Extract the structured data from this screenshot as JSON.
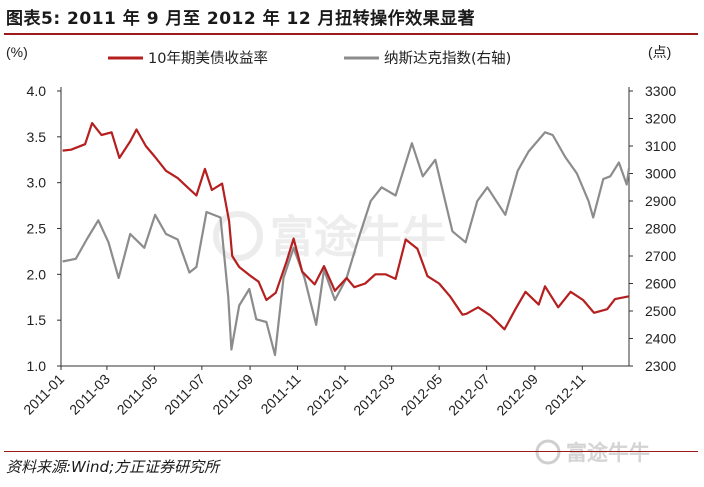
{
  "figure": {
    "title": "图表5:   2011 年 9 月至 2012 年 12 月扭转操作效果显著",
    "source": "资料来源:Wind;方正证券研究所",
    "watermark": "富途牛牛",
    "watermark_icon": "futu-logo-icon"
  },
  "chart_data": {
    "type": "line",
    "title": "",
    "left_axis": {
      "unit_label": "(%)",
      "range": [
        1.0,
        4.0
      ],
      "ticks": [
        "4.0",
        "3.5",
        "3.0",
        "2.5",
        "2.0",
        "1.5",
        "1.0"
      ]
    },
    "right_axis": {
      "unit_label": "(点)",
      "range": [
        2300,
        3300
      ],
      "ticks": [
        "3300",
        "3200",
        "3100",
        "3000",
        "2900",
        "2800",
        "2700",
        "2600",
        "2500",
        "2400",
        "2300"
      ]
    },
    "x_axis": {
      "range": [
        "2011-01-01",
        "2012-12-31"
      ],
      "ticks": [
        "2011-01",
        "2011-03",
        "2011-05",
        "2011-07",
        "2011-09",
        "2011-11",
        "2012-01",
        "2012-03",
        "2012-05",
        "2012-07",
        "2012-09",
        "2012-11"
      ]
    },
    "grid": false,
    "legend_position": "top",
    "series": [
      {
        "name": "10年期美债收益率",
        "axis": "left",
        "color": "#b51f1f",
        "points": [
          [
            "2011-01-03",
            3.35
          ],
          [
            "2011-01-14",
            3.36
          ],
          [
            "2011-02-01",
            3.42
          ],
          [
            "2011-02-10",
            3.65
          ],
          [
            "2011-02-22",
            3.52
          ],
          [
            "2011-03-07",
            3.55
          ],
          [
            "2011-03-17",
            3.27
          ],
          [
            "2011-03-31",
            3.45
          ],
          [
            "2011-04-08",
            3.58
          ],
          [
            "2011-04-20",
            3.4
          ],
          [
            "2011-05-02",
            3.28
          ],
          [
            "2011-05-16",
            3.13
          ],
          [
            "2011-05-31",
            3.05
          ],
          [
            "2011-06-10",
            2.97
          ],
          [
            "2011-06-24",
            2.86
          ],
          [
            "2011-07-05",
            3.15
          ],
          [
            "2011-07-14",
            2.92
          ],
          [
            "2011-07-27",
            2.99
          ],
          [
            "2011-08-05",
            2.58
          ],
          [
            "2011-08-09",
            2.2
          ],
          [
            "2011-08-18",
            2.08
          ],
          [
            "2011-09-02",
            1.98
          ],
          [
            "2011-09-12",
            1.92
          ],
          [
            "2011-09-22",
            1.72
          ],
          [
            "2011-10-04",
            1.8
          ],
          [
            "2011-10-18",
            2.14
          ],
          [
            "2011-10-27",
            2.39
          ],
          [
            "2011-11-07",
            2.03
          ],
          [
            "2011-11-23",
            1.89
          ],
          [
            "2011-12-05",
            2.09
          ],
          [
            "2011-12-19",
            1.82
          ],
          [
            "2012-01-03",
            1.96
          ],
          [
            "2012-01-13",
            1.86
          ],
          [
            "2012-01-27",
            1.9
          ],
          [
            "2012-02-09",
            2.0
          ],
          [
            "2012-02-22",
            2.0
          ],
          [
            "2012-03-06",
            1.95
          ],
          [
            "2012-03-19",
            2.38
          ],
          [
            "2012-04-03",
            2.28
          ],
          [
            "2012-04-16",
            1.98
          ],
          [
            "2012-05-01",
            1.9
          ],
          [
            "2012-05-15",
            1.76
          ],
          [
            "2012-05-31",
            1.56
          ],
          [
            "2012-06-05",
            1.57
          ],
          [
            "2012-06-20",
            1.64
          ],
          [
            "2012-07-06",
            1.55
          ],
          [
            "2012-07-24",
            1.4
          ],
          [
            "2012-08-07",
            1.62
          ],
          [
            "2012-08-20",
            1.81
          ],
          [
            "2012-09-06",
            1.67
          ],
          [
            "2012-09-14",
            1.87
          ],
          [
            "2012-10-01",
            1.64
          ],
          [
            "2012-10-17",
            1.81
          ],
          [
            "2012-11-02",
            1.72
          ],
          [
            "2012-11-16",
            1.58
          ],
          [
            "2012-12-03",
            1.62
          ],
          [
            "2012-12-13",
            1.73
          ],
          [
            "2012-12-31",
            1.76
          ]
        ]
      },
      {
        "name": "纳斯达克指数(右轴)",
        "axis": "right",
        "color": "#8c8c8c",
        "points": [
          [
            "2011-01-03",
            2680
          ],
          [
            "2011-01-20",
            2690
          ],
          [
            "2011-02-03",
            2760
          ],
          [
            "2011-02-18",
            2830
          ],
          [
            "2011-03-03",
            2750
          ],
          [
            "2011-03-16",
            2620
          ],
          [
            "2011-03-31",
            2780
          ],
          [
            "2011-04-18",
            2730
          ],
          [
            "2011-05-02",
            2850
          ],
          [
            "2011-05-16",
            2780
          ],
          [
            "2011-05-31",
            2760
          ],
          [
            "2011-06-15",
            2640
          ],
          [
            "2011-06-24",
            2660
          ],
          [
            "2011-07-07",
            2860
          ],
          [
            "2011-07-25",
            2840
          ],
          [
            "2011-08-04",
            2550
          ],
          [
            "2011-08-08",
            2360
          ],
          [
            "2011-08-18",
            2520
          ],
          [
            "2011-08-31",
            2580
          ],
          [
            "2011-09-09",
            2470
          ],
          [
            "2011-09-22",
            2460
          ],
          [
            "2011-10-03",
            2340
          ],
          [
            "2011-10-14",
            2620
          ],
          [
            "2011-10-27",
            2730
          ],
          [
            "2011-11-10",
            2620
          ],
          [
            "2011-11-25",
            2450
          ],
          [
            "2011-12-05",
            2650
          ],
          [
            "2011-12-19",
            2540
          ],
          [
            "2012-01-03",
            2620
          ],
          [
            "2012-01-18",
            2760
          ],
          [
            "2012-02-03",
            2900
          ],
          [
            "2012-02-17",
            2950
          ],
          [
            "2012-03-06",
            2920
          ],
          [
            "2012-03-27",
            3110
          ],
          [
            "2012-04-10",
            2990
          ],
          [
            "2012-04-26",
            3050
          ],
          [
            "2012-05-18",
            2790
          ],
          [
            "2012-06-04",
            2750
          ],
          [
            "2012-06-19",
            2900
          ],
          [
            "2012-07-02",
            2950
          ],
          [
            "2012-07-25",
            2850
          ],
          [
            "2012-08-10",
            3010
          ],
          [
            "2012-08-24",
            3080
          ],
          [
            "2012-09-14",
            3150
          ],
          [
            "2012-09-24",
            3140
          ],
          [
            "2012-10-10",
            3060
          ],
          [
            "2012-10-25",
            3000
          ],
          [
            "2012-11-09",
            2900
          ],
          [
            "2012-11-15",
            2840
          ],
          [
            "2012-11-28",
            2980
          ],
          [
            "2012-12-07",
            2990
          ],
          [
            "2012-12-18",
            3040
          ],
          [
            "2012-12-28",
            2960
          ],
          [
            "2012-12-31",
            3020
          ]
        ]
      }
    ]
  }
}
